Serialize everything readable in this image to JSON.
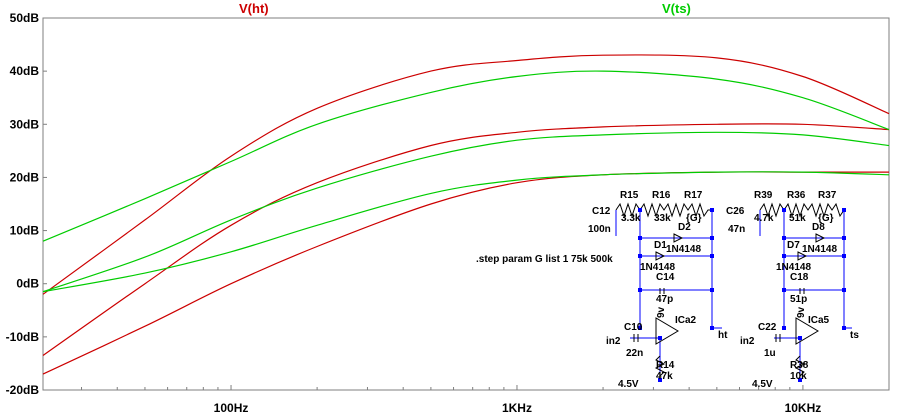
{
  "chart_data": {
    "type": "line",
    "x_scale": "log",
    "x_range_hz": [
      22,
      2000
    ],
    "y_range_db": [
      -20,
      50
    ],
    "y_ticks": [
      "50dB",
      "40dB",
      "30dB",
      "20dB",
      "10dB",
      "0dB",
      "-10dB",
      "-20dB"
    ],
    "y_tick_values": [
      50,
      40,
      30,
      20,
      10,
      0,
      -10,
      -20
    ],
    "x_ticks": [
      "100Hz",
      "1KHz",
      "10KHz"
    ],
    "x_tick_values": [
      100,
      1000,
      10000
    ],
    "grid": false,
    "series": [
      {
        "name": "V(ht)",
        "color": "#cc0000",
        "step": "1",
        "points": [
          [
            22,
            -17
          ],
          [
            50,
            -8
          ],
          [
            100,
            0
          ],
          [
            200,
            7
          ],
          [
            500,
            15
          ],
          [
            1000,
            19
          ],
          [
            2000,
            20.5
          ],
          [
            5000,
            21
          ],
          [
            10000,
            21
          ],
          [
            20000,
            21
          ]
        ]
      },
      {
        "name": "V(ht)",
        "color": "#cc0000",
        "step": "75k",
        "points": [
          [
            22,
            -13.5
          ],
          [
            50,
            0
          ],
          [
            100,
            11
          ],
          [
            200,
            19
          ],
          [
            500,
            26
          ],
          [
            1000,
            28.5
          ],
          [
            2000,
            29.5
          ],
          [
            5000,
            30
          ],
          [
            10000,
            30
          ],
          [
            20000,
            29
          ]
        ]
      },
      {
        "name": "V(ht)",
        "color": "#cc0000",
        "step": "500k",
        "points": [
          [
            22,
            -2
          ],
          [
            50,
            12
          ],
          [
            100,
            24
          ],
          [
            200,
            33
          ],
          [
            500,
            40
          ],
          [
            1000,
            42
          ],
          [
            2000,
            43
          ],
          [
            5000,
            42.5
          ],
          [
            10000,
            39
          ],
          [
            20000,
            32
          ]
        ]
      },
      {
        "name": "V(ts)",
        "color": "#00cc00",
        "step": "1",
        "points": [
          [
            22,
            -1.5
          ],
          [
            50,
            2
          ],
          [
            100,
            6
          ],
          [
            200,
            11
          ],
          [
            500,
            17
          ],
          [
            1000,
            19.5
          ],
          [
            2000,
            20.5
          ],
          [
            5000,
            21
          ],
          [
            10000,
            21
          ],
          [
            20000,
            20.5
          ]
        ]
      },
      {
        "name": "V(ts)",
        "color": "#00cc00",
        "step": "75k",
        "points": [
          [
            22,
            -1.5
          ],
          [
            50,
            5
          ],
          [
            100,
            12
          ],
          [
            200,
            18
          ],
          [
            500,
            24
          ],
          [
            1000,
            27
          ],
          [
            2000,
            28
          ],
          [
            5000,
            28.5
          ],
          [
            10000,
            28
          ],
          [
            20000,
            26
          ]
        ]
      },
      {
        "name": "V(ts)",
        "color": "#00cc00",
        "step": "500k",
        "points": [
          [
            22,
            8
          ],
          [
            50,
            16
          ],
          [
            100,
            23
          ],
          [
            200,
            30
          ],
          [
            500,
            36
          ],
          [
            1000,
            39
          ],
          [
            2000,
            40
          ],
          [
            5000,
            38.5
          ],
          [
            10000,
            35
          ],
          [
            20000,
            29
          ]
        ]
      }
    ]
  },
  "legend": [
    {
      "label": "V(ht)",
      "color": "#cc0000"
    },
    {
      "label": "V(ts)",
      "color": "#00cc00"
    }
  ],
  "directive": ".step param G list 1 75k 500k",
  "schematic": {
    "left": {
      "labels": [
        "R15",
        "3.3k",
        "R16",
        "33k",
        "R17",
        "{G}",
        "C12",
        "100n",
        "D2",
        "D1",
        "1N4148",
        "1N4148",
        "C14",
        "47p",
        "ICa2",
        "ht",
        "C10",
        "in2",
        "22n",
        "R14",
        "47k",
        "4.5V",
        "9v"
      ]
    },
    "right": {
      "labels": [
        "R39",
        "4.7k",
        "R36",
        "51k",
        "R37",
        "{G}",
        "C26",
        "47n",
        "D8",
        "D7",
        "1N4148",
        "1N4148",
        "C18",
        "51p",
        "ICa5",
        "ts",
        "C22",
        "in2",
        "1u",
        "R38",
        "10k",
        "4.5V",
        "9v"
      ]
    }
  }
}
